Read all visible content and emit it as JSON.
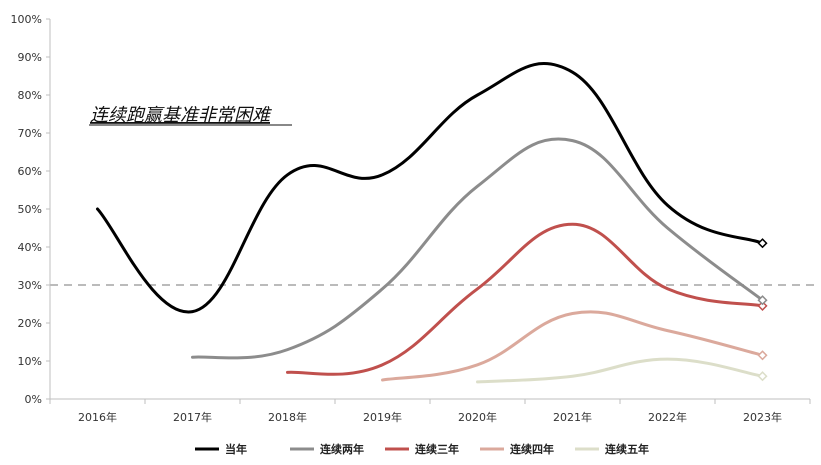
{
  "chart_data": {
    "type": "line",
    "title": "",
    "xlabel": "",
    "ylabel": "",
    "categories": [
      "2016年",
      "2017年",
      "2018年",
      "2019年",
      "2020年",
      "2021年",
      "2022年",
      "2023年"
    ],
    "ylim": [
      0,
      100
    ],
    "y_ticks": [
      "0%",
      "10%",
      "20%",
      "30%",
      "40%",
      "50%",
      "60%",
      "70%",
      "80%",
      "90%",
      "100%"
    ],
    "y_tick_values": [
      0,
      10,
      20,
      30,
      40,
      50,
      60,
      70,
      80,
      90,
      100
    ],
    "grid": false,
    "legend_position": "bottom",
    "annotation": "连续跑赢基准非常困难",
    "reference_line": {
      "value": 30,
      "style": "dashed",
      "color": "#bbbbbb"
    },
    "series": [
      {
        "name": "当年",
        "color": "#000000",
        "values": [
          50,
          23,
          59,
          59,
          80,
          86,
          51,
          41
        ]
      },
      {
        "name": "连续两年",
        "color": "#8c8c8c",
        "values": [
          null,
          11,
          13,
          29,
          56,
          68,
          45,
          26
        ]
      },
      {
        "name": "连续三年",
        "color": "#c0504d",
        "values": [
          null,
          null,
          7,
          9,
          29,
          46,
          29,
          24.5
        ]
      },
      {
        "name": "连续四年",
        "color": "#dba99c",
        "values": [
          null,
          null,
          null,
          5,
          9,
          22.5,
          18,
          11.5
        ]
      },
      {
        "name": "连续五年",
        "color": "#dcdec9",
        "values": [
          null,
          null,
          null,
          null,
          4.5,
          6,
          10.5,
          6
        ]
      }
    ]
  }
}
